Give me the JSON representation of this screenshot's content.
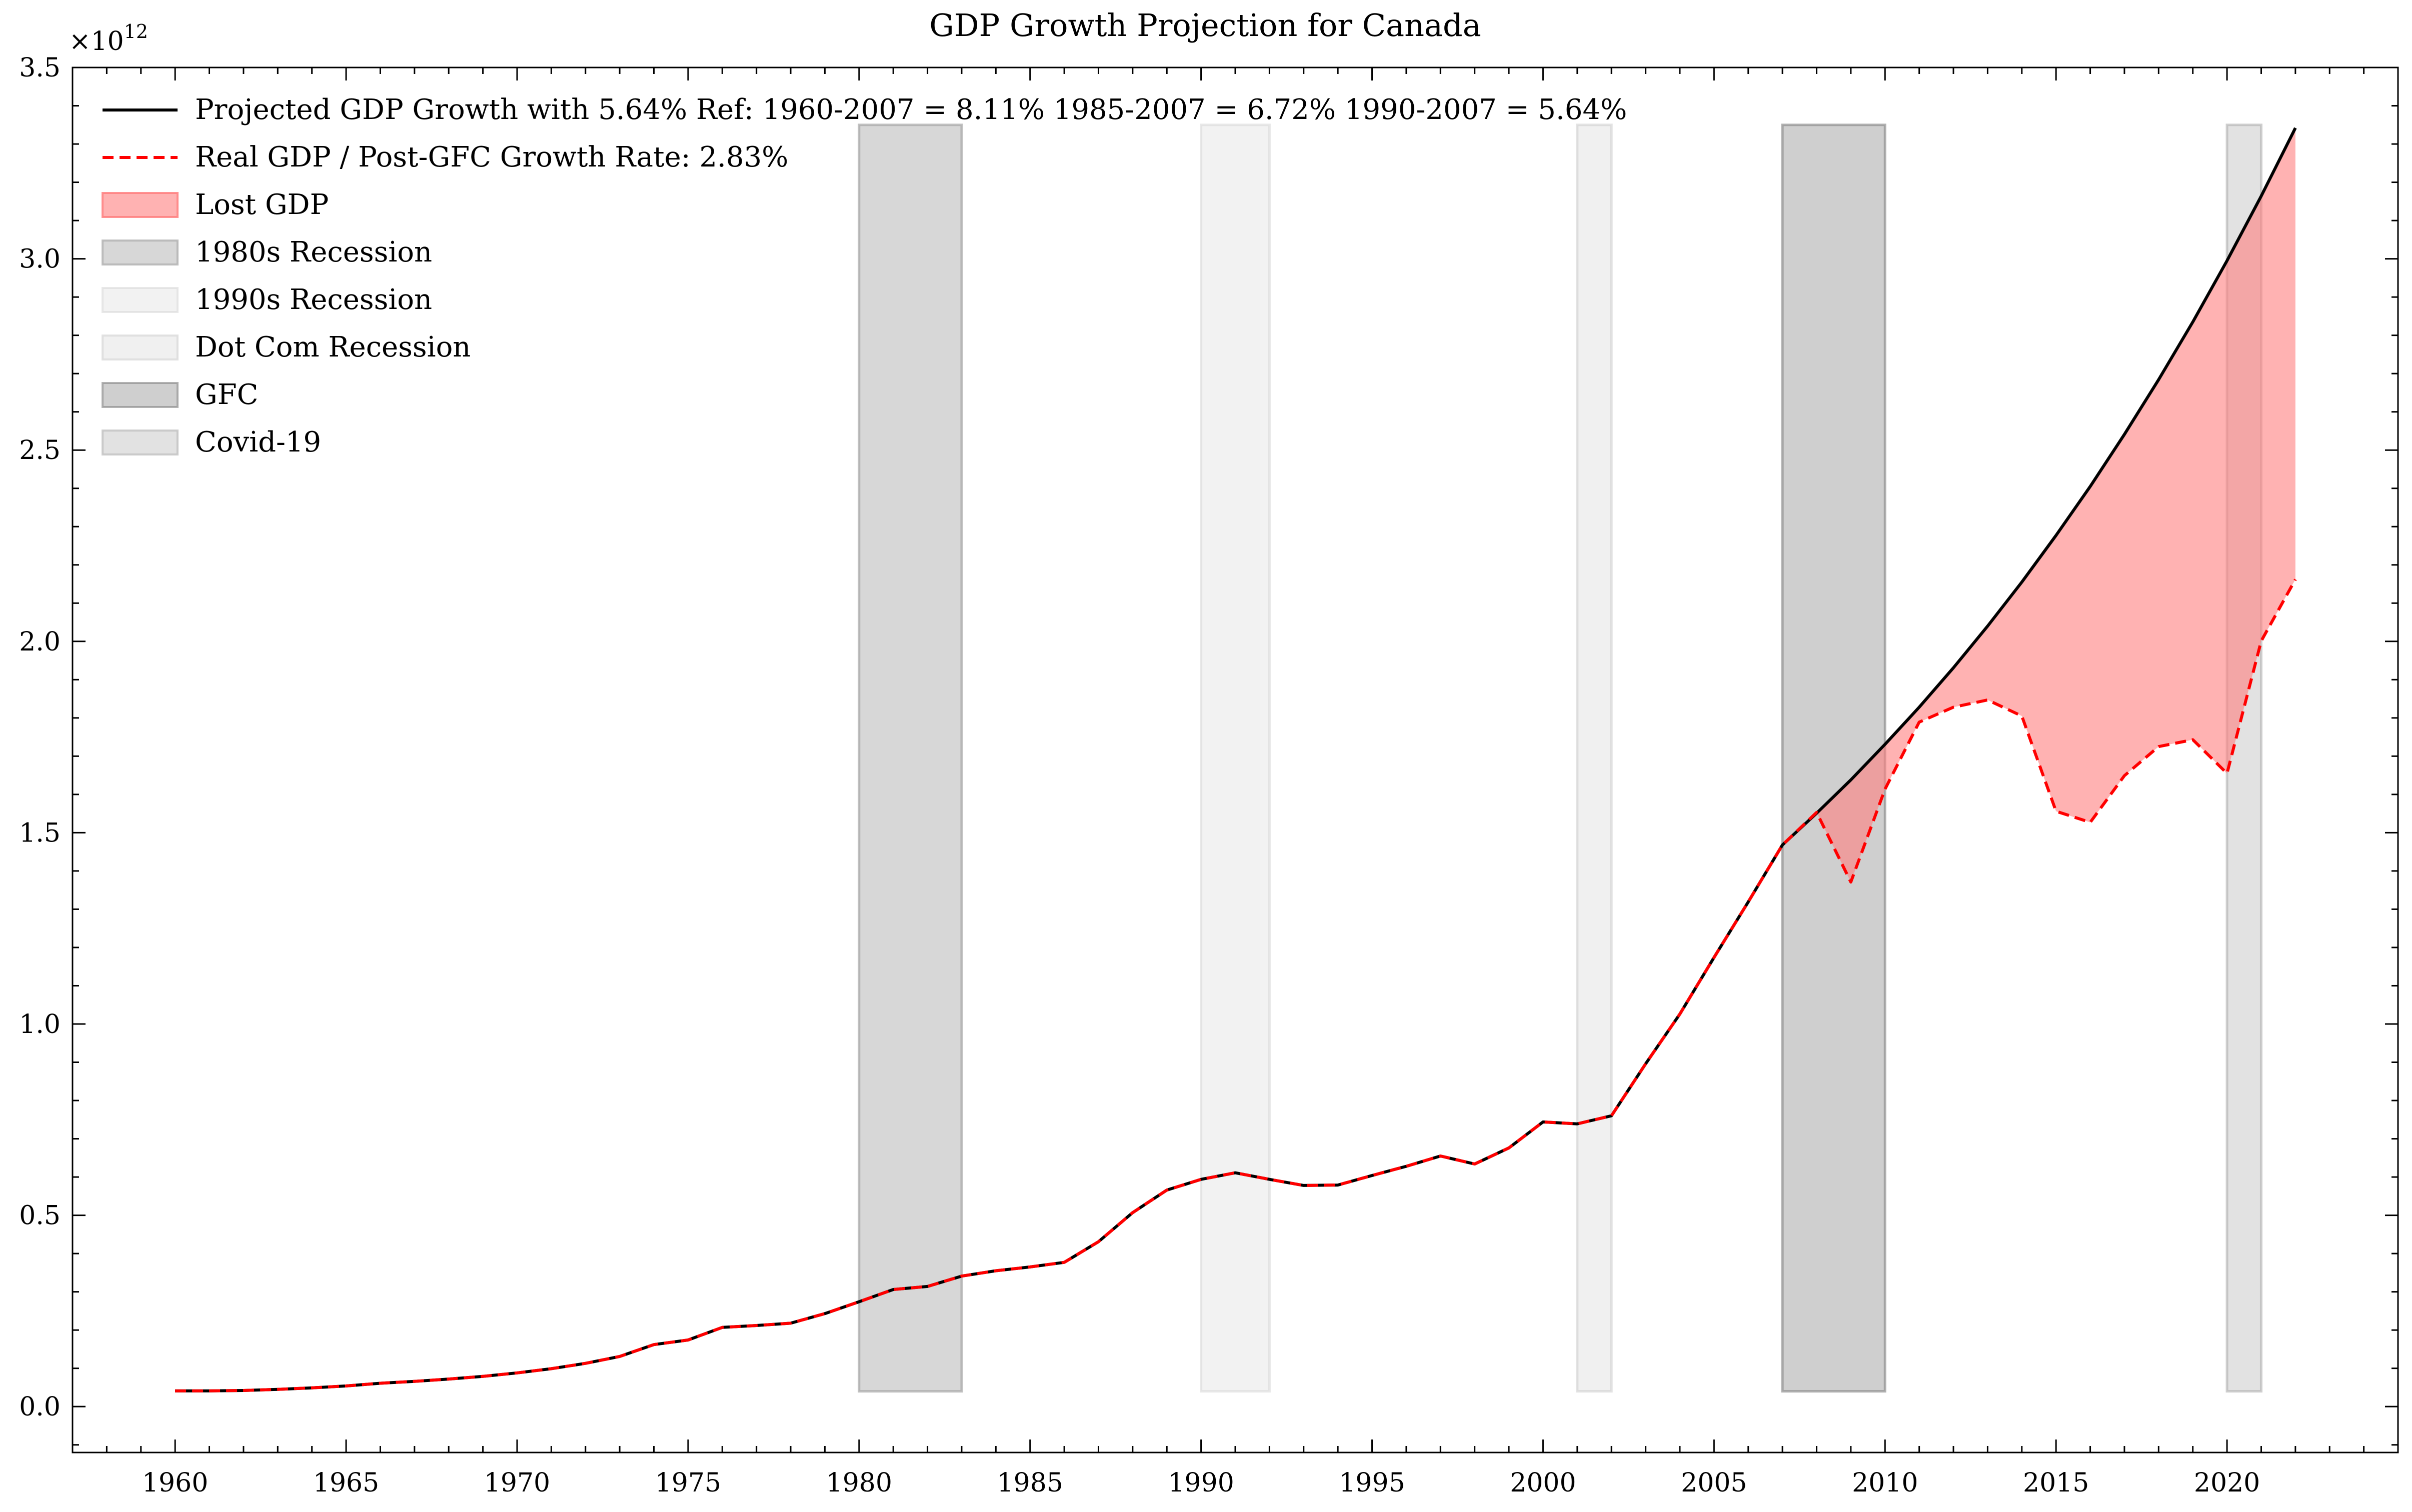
{
  "chart_data": {
    "type": "line",
    "title": "GDP Growth Projection for Canada",
    "xlabel": "",
    "ylabel": "",
    "y_scale_label": "×10",
    "y_scale_exp": "12",
    "xlim": [
      1957,
      2025
    ],
    "ylim": [
      -0.12,
      3.5
    ],
    "x_ticks": [
      1960,
      1965,
      1970,
      1975,
      1980,
      1985,
      1990,
      1995,
      2000,
      2005,
      2010,
      2015,
      2020
    ],
    "y_ticks": [
      0.0,
      0.5,
      1.0,
      1.5,
      2.0,
      2.5,
      3.0,
      3.5
    ],
    "y_tick_labels": [
      "0.0",
      "0.5",
      "1.0",
      "1.5",
      "2.0",
      "2.5",
      "3.0",
      "3.5"
    ],
    "grid": false,
    "legend_position": "top-left",
    "recessions": [
      {
        "name": "1980s Recession",
        "start": 1980,
        "end": 1983,
        "color": "#a6a6a6",
        "opacity": 0.45
      },
      {
        "name": "1990s Recession",
        "start": 1990,
        "end": 1992,
        "color": "#d9d9d9",
        "opacity": 0.35
      },
      {
        "name": "Dot Com Recession",
        "start": 2001,
        "end": 2002,
        "color": "#cccccc",
        "opacity": 0.3
      },
      {
        "name": "GFC",
        "start": 2007,
        "end": 2010,
        "color": "#8c8c8c",
        "opacity": 0.42
      },
      {
        "name": "Covid-19",
        "start": 2020,
        "end": 2021,
        "color": "#b3b3b3",
        "opacity": 0.38
      }
    ],
    "recession_band_range": [
      0.04,
      3.35
    ],
    "lost_gdp": {
      "name": "Lost GDP",
      "color": "#ff7f7f",
      "opacity": 0.6,
      "start": 2008
    },
    "series": [
      {
        "name": "Projected GDP Growth with 5.64% Ref: 1960-2007 = 8.11% 1985-2007 = 6.72% 1990-2007 = 5.64%",
        "color": "#000000",
        "style": "solid",
        "x": [
          1960,
          1961,
          1962,
          1963,
          1964,
          1965,
          1966,
          1967,
          1968,
          1969,
          1970,
          1971,
          1972,
          1973,
          1974,
          1975,
          1976,
          1977,
          1978,
          1979,
          1980,
          1981,
          1982,
          1983,
          1984,
          1985,
          1986,
          1987,
          1988,
          1989,
          1990,
          1991,
          1992,
          1993,
          1994,
          1995,
          1996,
          1997,
          1998,
          1999,
          2000,
          2001,
          2002,
          2003,
          2004,
          2005,
          2006,
          2007,
          2008,
          2009,
          2010,
          2011,
          2012,
          2013,
          2014,
          2015,
          2016,
          2017,
          2018,
          2019,
          2020,
          2021,
          2022
        ],
        "values": [
          0.041,
          0.041,
          0.042,
          0.045,
          0.049,
          0.054,
          0.061,
          0.066,
          0.072,
          0.079,
          0.088,
          0.099,
          0.113,
          0.131,
          0.162,
          0.174,
          0.207,
          0.212,
          0.218,
          0.243,
          0.274,
          0.306,
          0.314,
          0.341,
          0.355,
          0.365,
          0.377,
          0.431,
          0.507,
          0.566,
          0.594,
          0.611,
          0.594,
          0.578,
          0.579,
          0.604,
          0.628,
          0.655,
          0.634,
          0.676,
          0.744,
          0.739,
          0.76,
          0.896,
          1.026,
          1.174,
          1.319,
          1.468,
          1.551,
          1.638,
          1.731,
          1.828,
          1.931,
          2.04,
          2.155,
          2.277,
          2.405,
          2.541,
          2.684,
          2.835,
          2.995,
          3.164,
          3.342
        ]
      },
      {
        "name": "Real GDP / Post-GFC Growth Rate: 2.83%",
        "color": "#ff0000",
        "style": "dashed",
        "x": [
          1960,
          1961,
          1962,
          1963,
          1964,
          1965,
          1966,
          1967,
          1968,
          1969,
          1970,
          1971,
          1972,
          1973,
          1974,
          1975,
          1976,
          1977,
          1978,
          1979,
          1980,
          1981,
          1982,
          1983,
          1984,
          1985,
          1986,
          1987,
          1988,
          1989,
          1990,
          1991,
          1992,
          1993,
          1994,
          1995,
          1996,
          1997,
          1998,
          1999,
          2000,
          2001,
          2002,
          2003,
          2004,
          2005,
          2006,
          2007,
          2008,
          2009,
          2010,
          2011,
          2012,
          2013,
          2014,
          2015,
          2016,
          2017,
          2018,
          2019,
          2020,
          2021,
          2022
        ],
        "values": [
          0.041,
          0.041,
          0.042,
          0.045,
          0.049,
          0.054,
          0.061,
          0.066,
          0.072,
          0.079,
          0.088,
          0.099,
          0.113,
          0.131,
          0.162,
          0.174,
          0.207,
          0.212,
          0.218,
          0.243,
          0.274,
          0.306,
          0.314,
          0.341,
          0.355,
          0.365,
          0.377,
          0.431,
          0.507,
          0.566,
          0.594,
          0.611,
          0.594,
          0.578,
          0.579,
          0.604,
          0.628,
          0.655,
          0.634,
          0.676,
          0.744,
          0.739,
          0.76,
          0.896,
          1.026,
          1.174,
          1.319,
          1.468,
          1.553,
          1.371,
          1.614,
          1.789,
          1.828,
          1.847,
          1.805,
          1.556,
          1.527,
          1.649,
          1.725,
          1.743,
          1.655,
          2.001,
          2.162
        ]
      }
    ]
  }
}
